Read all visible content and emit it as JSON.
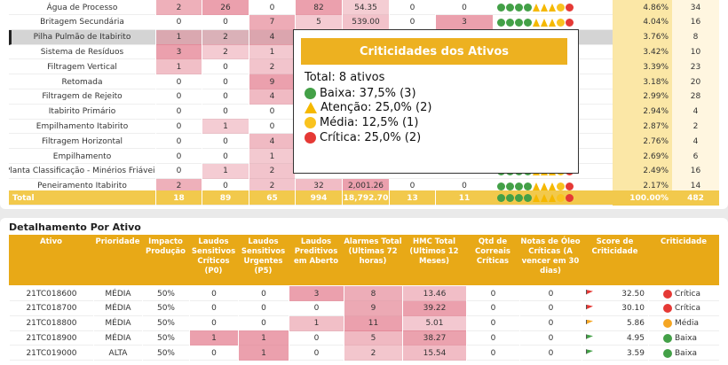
{
  "top_table": {
    "rows": [
      {
        "name": "Água de Processo",
        "cells": [
          2,
          26,
          0,
          82,
          "54.35",
          0,
          0
        ],
        "percent": "4.86%",
        "count": 34
      },
      {
        "name": "Britagem Secundária",
        "cells": [
          0,
          0,
          7,
          5,
          "539.00",
          0,
          3
        ],
        "percent": "4.04%",
        "count": 16
      },
      {
        "name": "Pilha Pulmão de Itabirito",
        "cells": [
          1,
          2,
          4
        ],
        "percent": "3.76%",
        "count": 8
      },
      {
        "name": "Sistema de Resíduos",
        "cells": [
          3,
          2,
          1
        ],
        "percent": "3.42%",
        "count": 10
      },
      {
        "name": "Filtragem Vertical",
        "cells": [
          1,
          0,
          2
        ],
        "percent": "3.39%",
        "count": 23
      },
      {
        "name": "Retomada",
        "cells": [
          0,
          0,
          9
        ],
        "percent": "3.18%",
        "count": 20
      },
      {
        "name": "Filtragem de Rejeito",
        "cells": [
          0,
          0,
          4
        ],
        "percent": "2.99%",
        "count": 28
      },
      {
        "name": "Itabirito Primário",
        "cells": [
          0,
          0,
          0
        ],
        "percent": "2.94%",
        "count": 4
      },
      {
        "name": "Empilhamento Itabirito",
        "cells": [
          0,
          1,
          0
        ],
        "percent": "2.87%",
        "count": 2
      },
      {
        "name": "Filtragem Horizontal",
        "cells": [
          0,
          0,
          4
        ],
        "percent": "2.76%",
        "count": 4
      },
      {
        "name": "Empilhamento",
        "cells": [
          0,
          0,
          1
        ],
        "percent": "2.69%",
        "count": 6
      },
      {
        "name": "Planta Classificação - Minérios Friáveis",
        "cells": [
          0,
          1,
          2
        ],
        "percent": "2.49%",
        "count": 16
      },
      {
        "name": "Peneiramento Itabirito",
        "cells": [
          2,
          0,
          2,
          32,
          "2,001.26",
          0,
          0
        ],
        "percent": "2.17%",
        "count": 14
      }
    ],
    "total": {
      "name": "Total",
      "cells": [
        18,
        89,
        65,
        994,
        "18,792.70",
        13,
        11
      ],
      "percent": "100.00%",
      "count": 482
    }
  },
  "tooltip": {
    "title": "Criticidades dos Ativos",
    "total": "Total: 8 ativos",
    "items": [
      {
        "label": "Baixa: 37,5% (3)",
        "color": "#43a047",
        "shape": "circle"
      },
      {
        "label": "Atenção: 25,0% (2)",
        "color": "#f5b800",
        "shape": "triangle"
      },
      {
        "label": "Média: 12,5% (1)",
        "color": "#f9c31f",
        "shape": "circle"
      },
      {
        "label": "Crítica: 25,0% (2)",
        "color": "#e53935",
        "shape": "circle"
      }
    ]
  },
  "detail_table": {
    "title": "Detalhamento Por Ativo",
    "columns": [
      "Ativo",
      "Prioridade",
      "Impacto Produção",
      "Laudos Sensitivos Críticos (P0)",
      "Laudos Sensitivos Urgentes (P5)",
      "Laudos Preditivos em Aberto",
      "Alarmes Total (Ultimas 72 horas)",
      "HMC Total (Ultimos 12 Meses)",
      "Qtd de Correais Críticas",
      "Notas de Óleo Críticas (A vencer em 30 dias)",
      "Score de Criticidade",
      "Criticidade"
    ],
    "rows": [
      {
        "cells": [
          "21TC018600",
          "MÉDIA",
          "50%",
          0,
          0,
          3,
          8,
          "13.46",
          0,
          0,
          "32.50",
          "Crítica"
        ],
        "color": "#e53935"
      },
      {
        "cells": [
          "21TC018700",
          "MÉDIA",
          "50%",
          0,
          0,
          0,
          9,
          "39.22",
          0,
          0,
          "30.10",
          "Crítica"
        ],
        "color": "#e53935"
      },
      {
        "cells": [
          "21TC018800",
          "MÉDIA",
          "50%",
          0,
          0,
          1,
          11,
          "5.01",
          0,
          0,
          "5.86",
          "Média"
        ],
        "color": "#f5a623"
      },
      {
        "cells": [
          "21TC018900",
          "MÉDIA",
          "50%",
          1,
          1,
          0,
          5,
          "38.27",
          0,
          0,
          "4.95",
          "Baixa"
        ],
        "color": "#43a047"
      },
      {
        "cells": [
          "21TC019000",
          "ALTA",
          "50%",
          0,
          1,
          0,
          2,
          "15.54",
          0,
          0,
          "3.59",
          "Baixa"
        ],
        "color": "#43a047"
      }
    ]
  }
}
